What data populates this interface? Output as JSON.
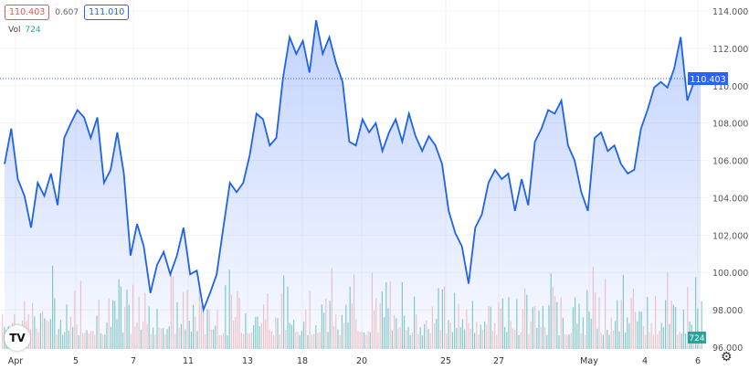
{
  "legend": {
    "open": "110.403",
    "change": "0.607",
    "close": "111.010",
    "vol_label": "Vol",
    "vol_value": "724"
  },
  "colors": {
    "line": "#1e63e9",
    "up": "#26a69a",
    "down": "#ef9a9a",
    "price_tag": "#2962ff"
  },
  "chart_data": {
    "type": "area",
    "ylim": [
      96,
      114
    ],
    "y_ticks": [
      "114.000",
      "112.000",
      "110.000",
      "108.000",
      "106.000",
      "104.000",
      "102.000",
      "100.000",
      "98.000",
      "96.000"
    ],
    "x_ticks": [
      "Apr",
      "5",
      "7",
      "11",
      "13",
      "18",
      "20",
      "25",
      "27",
      "May",
      "4",
      "6"
    ],
    "last_price": "110.403",
    "last_volume": "724",
    "values": [
      105.8,
      107.7,
      105.0,
      104.1,
      102.4,
      104.8,
      104.1,
      105.3,
      103.6,
      107.2,
      108.0,
      108.7,
      108.3,
      107.2,
      108.3,
      104.8,
      105.5,
      107.5,
      105.3,
      100.9,
      102.6,
      101.4,
      98.9,
      100.4,
      101.1,
      99.9,
      100.9,
      102.4,
      99.9,
      100.1,
      98.0,
      98.9,
      99.9,
      102.4,
      104.8,
      104.3,
      104.8,
      106.3,
      108.5,
      108.2,
      106.8,
      107.2,
      110.4,
      112.6,
      111.7,
      112.4,
      110.7,
      113.5,
      111.7,
      112.6,
      111.2,
      110.2,
      107.0,
      106.8,
      108.2,
      107.5,
      108.0,
      106.5,
      107.5,
      108.2,
      107.0,
      108.5,
      107.3,
      106.5,
      107.3,
      106.8,
      105.8,
      103.3,
      102.1,
      101.4,
      99.4,
      102.4,
      103.1,
      104.8,
      105.5,
      105.0,
      105.3,
      103.3,
      105.0,
      103.6,
      107.0,
      107.7,
      108.7,
      108.5,
      109.2,
      106.8,
      106.0,
      104.3,
      103.3,
      107.2,
      107.5,
      106.5,
      106.8,
      105.8,
      105.3,
      105.5,
      107.7,
      108.7,
      109.9,
      110.2,
      109.9,
      110.9,
      112.6,
      109.2,
      110.2,
      110.4
    ]
  }
}
